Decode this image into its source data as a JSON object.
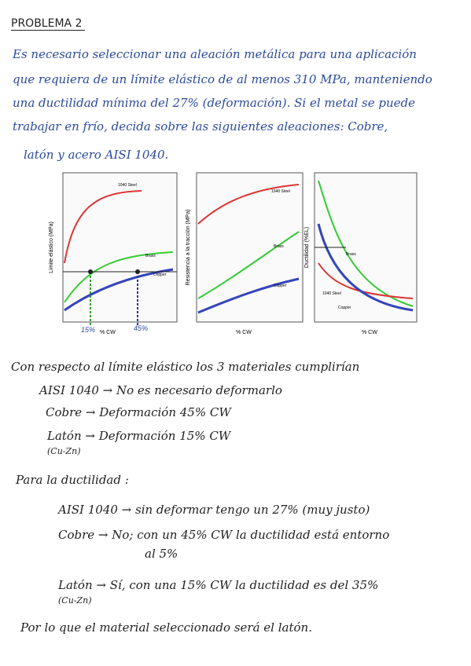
{
  "header": {
    "title": "PROBLEMA 2"
  },
  "statement": {
    "lines": [
      "Es necesario seleccionar una aleación metálica para una aplicación",
      "que requiera de un límite elástico de al menos 310 MPa, manteniendo",
      "una ductilidad mínima del 27% (deformación). Si el metal se puede",
      "trabajar en frío, decida sobre las siguientes aleaciones: Cobre,",
      "latón y acero AISI 1040."
    ]
  },
  "figure": {
    "panels": [
      {
        "y_label": "Límite elástico (MPa)",
        "x_label": "% CW",
        "curve_labels": [
          "1040 Steel",
          "Brass",
          "Copper"
        ],
        "annotations": [
          "15%",
          "45%"
        ]
      },
      {
        "y_label": "Resistencia a la tracción (MPa)",
        "x_label": "% CW",
        "curve_labels": [
          "1040 Steel",
          "Brass",
          "Copper"
        ]
      },
      {
        "y_label": "Ductilidad (%EL)",
        "x_label": "% CW",
        "curve_labels": [
          "Brass",
          "1040 Steel",
          "Copper"
        ]
      }
    ]
  },
  "answer": {
    "intro": "Con respecto al límite elástico los 3 materiales cumplirían",
    "yield_rows": [
      "AISI 1040 → No es necesario deformarlo",
      "Cobre → Deformación 45% CW",
      "Latón → Deformación 15% CW"
    ],
    "brass_note": "(Cu-Zn)",
    "ductility_heading": "Para la ductilidad :",
    "ductility_rows": [
      "AISI 1040 → sin deformar tengo un 27% (muy justo)",
      "Cobre → No; con un 45% CW la ductilidad está entorno",
      "al 5%",
      "Latón → Sí, con una 15% CW la ductilidad es del 35%"
    ],
    "conclusion": "Por lo que el material seleccionado será el latón."
  }
}
